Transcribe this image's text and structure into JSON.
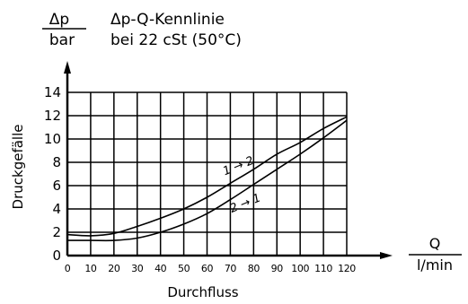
{
  "chart_data": {
    "type": "line",
    "title": "Δp-Q-Kennlinie",
    "subtitle": "bei 22 cSt (50°C)",
    "y_unit_numerator": "Δp",
    "y_unit_denominator": "bar",
    "x_unit_numerator": "Q",
    "x_unit_denominator": "l/min",
    "xlabel": "Durchfluss",
    "ylabel": "Druckgefälle",
    "xlim": [
      0,
      120
    ],
    "ylim": [
      0,
      14
    ],
    "x_ticks": [
      "0",
      "10",
      "20",
      "30",
      "40",
      "50",
      "60",
      "70",
      "80",
      "90",
      "100",
      "110",
      "120"
    ],
    "y_ticks": [
      "0",
      "2",
      "4",
      "6",
      "8",
      "10",
      "12",
      "14"
    ],
    "grid": true,
    "series": [
      {
        "name": "1 → 2",
        "x": [
          0,
          10,
          20,
          30,
          40,
          50,
          60,
          70,
          80,
          90,
          100,
          110,
          120
        ],
        "y": [
          1.8,
          1.7,
          1.9,
          2.5,
          3.2,
          4.0,
          5.0,
          6.2,
          7.4,
          8.7,
          9.7,
          10.9,
          11.9
        ]
      },
      {
        "name": "2 → 1",
        "x": [
          0,
          10,
          20,
          30,
          40,
          50,
          60,
          70,
          80,
          90,
          100,
          110,
          120
        ],
        "y": [
          1.3,
          1.3,
          1.3,
          1.5,
          2.0,
          2.7,
          3.6,
          4.8,
          6.1,
          7.4,
          8.7,
          10.1,
          11.6
        ]
      }
    ],
    "curve_labels": [
      {
        "text": "1 → 2",
        "x": 74,
        "y": 7.4
      },
      {
        "text": "2 → 1",
        "x": 77,
        "y": 4.2
      }
    ]
  }
}
